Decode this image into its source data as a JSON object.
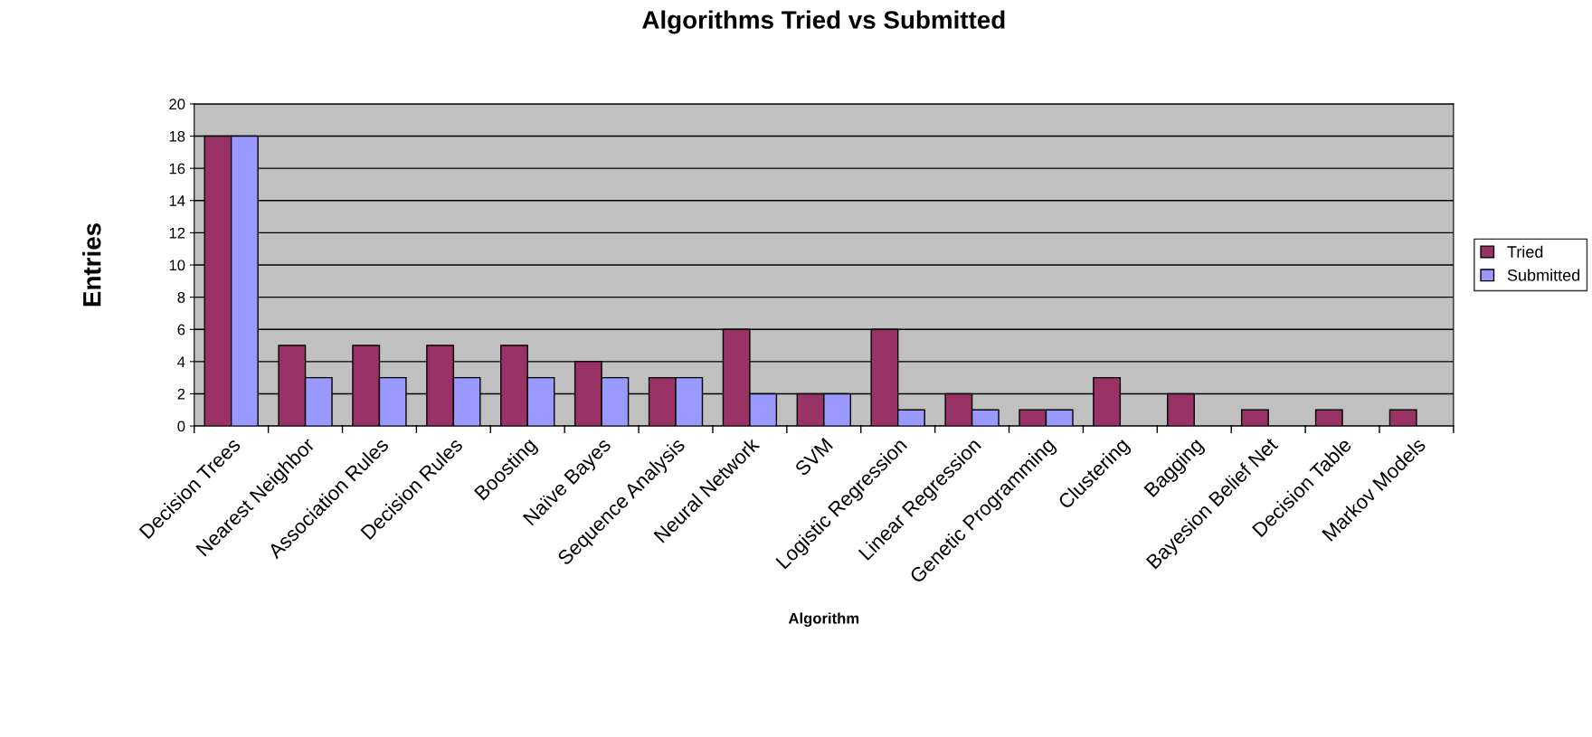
{
  "chart_data": {
    "type": "bar",
    "title": "Algorithms Tried vs Submitted",
    "xlabel": "Algorithm",
    "ylabel": "Entries",
    "categories": [
      "Decision Trees",
      "Nearest Neighbor",
      "Association Rules",
      "Decision Rules",
      "Boosting",
      "Naïve Bayes",
      "Sequence Analysis",
      "Neural Network",
      "SVM",
      "Logistic Regression",
      "Linear Regression",
      "Genetic Programming",
      "Clustering",
      "Bagging",
      "Bayesion Belief Net",
      "Decision Table",
      "Markov Models"
    ],
    "series": [
      {
        "name": "Tried",
        "color": "#993366",
        "values": [
          18,
          5,
          5,
          5,
          5,
          4,
          3,
          6,
          2,
          6,
          2,
          1,
          3,
          2,
          1,
          1,
          1
        ]
      },
      {
        "name": "Submitted",
        "color": "#9999ff",
        "values": [
          18,
          3,
          3,
          3,
          3,
          3,
          3,
          2,
          2,
          1,
          1,
          1,
          null,
          null,
          null,
          null,
          null
        ]
      }
    ],
    "ylim": [
      0,
      20
    ],
    "yticks": [
      0,
      2,
      4,
      6,
      8,
      10,
      12,
      14,
      16,
      18,
      20
    ],
    "grid": "y",
    "legend": "right"
  }
}
